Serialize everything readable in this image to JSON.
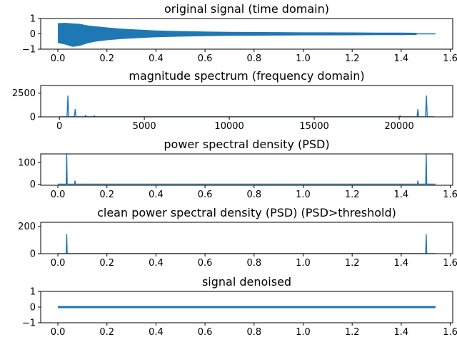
{
  "figure": {
    "line_color": "#1f77b4"
  },
  "chart_data": [
    {
      "type": "line",
      "title": "original signal (time domain)",
      "xlim": [
        -0.07,
        1.61
      ],
      "ylim": [
        -1,
        1
      ],
      "xticks": [
        0.0,
        0.2,
        0.4,
        0.6,
        0.8,
        1.0,
        1.2,
        1.4,
        1.6
      ],
      "xtick_labels": [
        "0.0",
        "0.2",
        "0.4",
        "0.6",
        "0.8",
        "1.0",
        "1.2",
        "1.4",
        "1.6"
      ],
      "yticks": [
        -1,
        0,
        1
      ],
      "ytick_labels": [
        "−1",
        "0",
        "1"
      ],
      "series": [
        {
          "style": "envelope",
          "x": [
            0.0,
            0.03,
            0.06,
            0.09,
            0.12,
            0.15,
            0.2,
            0.25,
            0.3,
            0.4,
            0.5,
            0.6,
            0.7,
            0.8,
            0.9,
            1.0,
            1.1,
            1.2,
            1.3,
            1.4,
            1.46,
            1.47,
            1.54
          ],
          "upper": [
            0.7,
            0.72,
            0.68,
            0.65,
            0.55,
            0.5,
            0.42,
            0.35,
            0.3,
            0.22,
            0.18,
            0.15,
            0.13,
            0.12,
            0.11,
            0.1,
            0.1,
            0.09,
            0.08,
            0.08,
            0.07,
            0.0,
            0.0
          ],
          "lower": [
            -0.6,
            -0.7,
            -0.85,
            -0.78,
            -0.62,
            -0.52,
            -0.42,
            -0.35,
            -0.3,
            -0.22,
            -0.18,
            -0.15,
            -0.13,
            -0.12,
            -0.11,
            -0.1,
            -0.1,
            -0.09,
            -0.08,
            -0.08,
            -0.07,
            0.0,
            0.0
          ]
        }
      ]
    },
    {
      "type": "line",
      "title": "magnitude spectrum (frequency domain)",
      "xlim": [
        -1100,
        23150
      ],
      "ylim": [
        0,
        3300
      ],
      "xticks": [
        0,
        5000,
        10000,
        15000,
        20000
      ],
      "xtick_labels": [
        "0",
        "5000",
        "10000",
        "15000",
        "20000"
      ],
      "yticks": [
        0,
        2500
      ],
      "ytick_labels": [
        "0",
        "2500"
      ],
      "series": [
        {
          "style": "line",
          "x": [
            0,
            450,
            500,
            550,
            880,
            930,
            980,
            1500,
            1550,
            1600,
            2000,
            2050,
            2100,
            20000,
            20050,
            20100,
            21050,
            21100,
            21150,
            21550,
            21600,
            21650,
            22050
          ],
          "y": [
            0,
            0,
            2200,
            0,
            0,
            780,
            0,
            0,
            150,
            0,
            0,
            110,
            0,
            0,
            110,
            0,
            0,
            780,
            0,
            0,
            2200,
            0,
            0
          ]
        }
      ]
    },
    {
      "type": "line",
      "title": "power spectral density (PSD)",
      "xlim": [
        -0.07,
        1.61
      ],
      "ylim": [
        -5,
        140
      ],
      "xticks": [
        0.0,
        0.2,
        0.4,
        0.6,
        0.8,
        1.0,
        1.2,
        1.4,
        1.6
      ],
      "xtick_labels": [
        "0.0",
        "0.2",
        "0.4",
        "0.6",
        "0.8",
        "1.0",
        "1.2",
        "1.4",
        "1.6"
      ],
      "yticks": [
        0,
        100
      ],
      "ytick_labels": [
        "0",
        "100"
      ],
      "series": [
        {
          "style": "line",
          "x": [
            0.0,
            0.034,
            0.036,
            0.038,
            0.068,
            0.07,
            0.072,
            1.466,
            1.468,
            1.47,
            1.5,
            1.502,
            1.504,
            1.54
          ],
          "y": [
            0,
            0,
            140,
            0,
            0,
            15,
            0,
            0,
            15,
            0,
            0,
            140,
            0,
            0
          ]
        }
      ]
    },
    {
      "type": "line",
      "title": "clean power spectral density (PSD) (PSD>threshold)",
      "xlim": [
        -0.07,
        1.61
      ],
      "ylim": [
        0,
        230
      ],
      "xticks": [
        0.0,
        0.2,
        0.4,
        0.6,
        0.8,
        1.0,
        1.2,
        1.4,
        1.6
      ],
      "xtick_labels": [
        "0.0",
        "0.2",
        "0.4",
        "0.6",
        "0.8",
        "1.0",
        "1.2",
        "1.4",
        "1.6"
      ],
      "yticks": [
        0,
        200
      ],
      "ytick_labels": [
        "0",
        "200"
      ],
      "series": [
        {
          "style": "line",
          "x": [
            0.0,
            0.034,
            0.036,
            0.038,
            1.5,
            1.502,
            1.504,
            1.54
          ],
          "y": [
            0,
            0,
            140,
            0,
            0,
            140,
            0,
            0
          ]
        }
      ]
    },
    {
      "type": "line",
      "title": "signal denoised",
      "xlim": [
        -0.07,
        1.61
      ],
      "ylim": [
        -1,
        1
      ],
      "xticks": [
        0.0,
        0.2,
        0.4,
        0.6,
        0.8,
        1.0,
        1.2,
        1.4,
        1.6
      ],
      "xtick_labels": [
        "0.0",
        "0.2",
        "0.4",
        "0.6",
        "0.8",
        "1.0",
        "1.2",
        "1.4",
        "1.6"
      ],
      "yticks": [
        -1,
        0,
        1
      ],
      "ytick_labels": [
        "−1",
        "0",
        "1"
      ],
      "series": [
        {
          "style": "envelope",
          "x": [
            0.0,
            1.54
          ],
          "upper": [
            0.07,
            0.07
          ],
          "lower": [
            -0.07,
            -0.07
          ]
        }
      ]
    }
  ]
}
